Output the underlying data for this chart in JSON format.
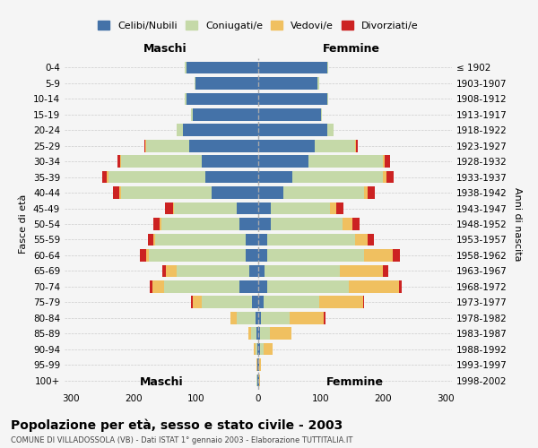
{
  "age_groups": [
    "0-4",
    "5-9",
    "10-14",
    "15-19",
    "20-24",
    "25-29",
    "30-34",
    "35-39",
    "40-44",
    "45-49",
    "50-54",
    "55-59",
    "60-64",
    "65-69",
    "70-74",
    "75-79",
    "80-84",
    "85-89",
    "90-94",
    "95-99",
    "100+"
  ],
  "birth_years": [
    "1998-2002",
    "1993-1997",
    "1988-1992",
    "1983-1987",
    "1978-1982",
    "1973-1977",
    "1968-1972",
    "1963-1967",
    "1958-1962",
    "1953-1957",
    "1948-1952",
    "1943-1947",
    "1938-1942",
    "1933-1937",
    "1928-1932",
    "1923-1927",
    "1918-1922",
    "1913-1917",
    "1908-1912",
    "1903-1907",
    "≤ 1902"
  ],
  "maschi": {
    "celibi": [
      115,
      100,
      115,
      105,
      120,
      110,
      90,
      85,
      75,
      35,
      30,
      20,
      20,
      15,
      30,
      10,
      5,
      3,
      2,
      1,
      2
    ],
    "coniugati": [
      2,
      2,
      2,
      2,
      10,
      70,
      130,
      155,
      145,
      100,
      125,
      145,
      155,
      115,
      120,
      80,
      30,
      8,
      3,
      1,
      1
    ],
    "vedovi": [
      0,
      0,
      0,
      0,
      0,
      1,
      1,
      2,
      2,
      2,
      3,
      3,
      5,
      18,
      20,
      15,
      10,
      5,
      2,
      1,
      0
    ],
    "divorziati": [
      0,
      0,
      0,
      0,
      0,
      1,
      5,
      8,
      10,
      12,
      10,
      8,
      10,
      5,
      3,
      2,
      0,
      0,
      0,
      0,
      0
    ]
  },
  "femmine": {
    "nubili": [
      110,
      95,
      110,
      100,
      110,
      90,
      80,
      55,
      40,
      20,
      20,
      15,
      15,
      10,
      15,
      8,
      5,
      3,
      3,
      1,
      2
    ],
    "coniugate": [
      2,
      2,
      2,
      2,
      10,
      65,
      120,
      145,
      130,
      95,
      115,
      140,
      155,
      120,
      130,
      90,
      45,
      15,
      5,
      1,
      0
    ],
    "vedove": [
      0,
      0,
      0,
      0,
      0,
      2,
      3,
      5,
      5,
      10,
      15,
      20,
      45,
      70,
      80,
      70,
      55,
      35,
      15,
      3,
      1
    ],
    "divorziate": [
      0,
      0,
      0,
      0,
      0,
      2,
      8,
      12,
      12,
      12,
      12,
      10,
      12,
      8,
      5,
      2,
      2,
      0,
      0,
      0,
      0
    ]
  },
  "colors": {
    "celibi": "#4472a8",
    "coniugati": "#c5d9a8",
    "vedovi": "#f0c060",
    "divorziati": "#cc2222"
  },
  "title": "Popolazione per età, sesso e stato civile - 2003",
  "subtitle": "COMUNE DI VILLADOSSOLA (VB) - Dati ISTAT 1° gennaio 2003 - Elaborazione TUTTITALIA.IT",
  "ylabel_left": "Fasce di età",
  "ylabel_right": "Anni di nascita",
  "xlabel_maschi": "Maschi",
  "xlabel_femmine": "Femmine",
  "legend_labels": [
    "Celibi/Nubili",
    "Coniugati/e",
    "Vedovi/e",
    "Divorziati/e"
  ],
  "xlim": 310,
  "bg_color": "#f5f5f5",
  "grid_color": "#cccccc"
}
